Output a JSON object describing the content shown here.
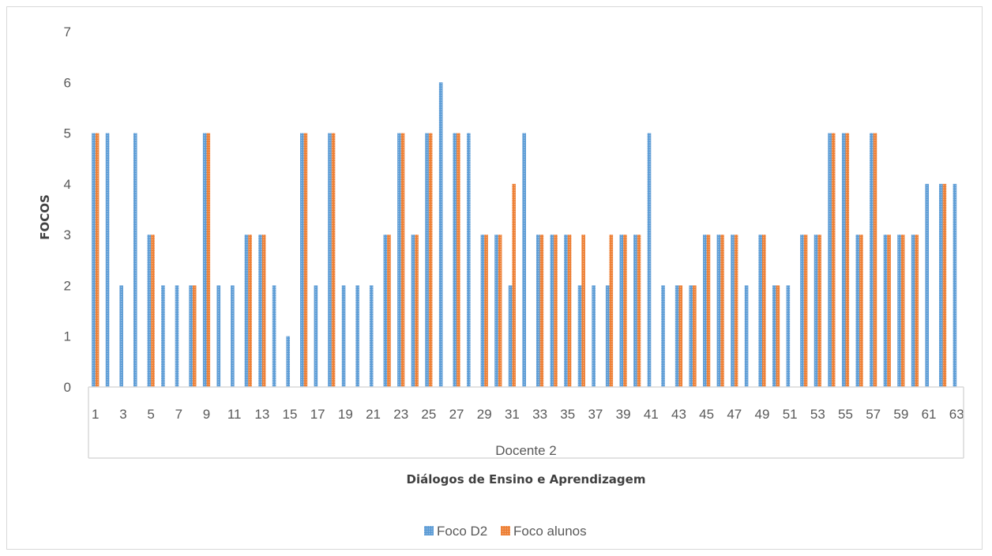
{
  "chart_data": {
    "type": "bar",
    "ylabel": "FOCOS",
    "xlabel": "Diálogos de Ensino e Aprendizagem",
    "group_label": "Docente 2",
    "ylim": [
      0,
      7
    ],
    "yticks": [
      0,
      1,
      2,
      3,
      4,
      5,
      6,
      7
    ],
    "categories": [
      1,
      2,
      3,
      4,
      5,
      6,
      7,
      8,
      9,
      10,
      11,
      12,
      13,
      14,
      15,
      16,
      17,
      18,
      19,
      20,
      21,
      22,
      23,
      24,
      25,
      26,
      27,
      28,
      29,
      30,
      31,
      32,
      33,
      34,
      35,
      36,
      37,
      38,
      39,
      40,
      41,
      42,
      43,
      44,
      45,
      46,
      47,
      48,
      49,
      50,
      51,
      52,
      53,
      54,
      55,
      56,
      57,
      58,
      59,
      60,
      61,
      62,
      63
    ],
    "category_labels_shown": [
      1,
      3,
      5,
      7,
      9,
      11,
      13,
      15,
      17,
      19,
      21,
      23,
      25,
      27,
      29,
      31,
      33,
      35,
      37,
      39,
      41,
      43,
      45,
      47,
      49,
      51,
      53,
      55,
      57,
      59,
      61,
      63
    ],
    "series": [
      {
        "name": "Foco D2",
        "color": "#5b9bd5",
        "values": [
          5,
          5,
          2,
          5,
          3,
          2,
          2,
          2,
          5,
          2,
          2,
          3,
          3,
          2,
          1,
          5,
          2,
          5,
          2,
          2,
          2,
          3,
          5,
          3,
          5,
          6,
          5,
          5,
          3,
          3,
          2,
          5,
          3,
          3,
          3,
          2,
          2,
          2,
          3,
          3,
          5,
          2,
          2,
          2,
          3,
          3,
          3,
          2,
          3,
          2,
          2,
          3,
          3,
          5,
          5,
          3,
          5,
          3,
          3,
          3,
          4,
          4,
          4
        ]
      },
      {
        "name": "Foco alunos",
        "color": "#ed7d31",
        "values": [
          5,
          0,
          0,
          0,
          3,
          0,
          0,
          2,
          5,
          0,
          0,
          3,
          3,
          0,
          0,
          5,
          0,
          5,
          0,
          0,
          0,
          3,
          5,
          3,
          5,
          0,
          5,
          0,
          3,
          3,
          4,
          0,
          3,
          3,
          3,
          3,
          0,
          3,
          3,
          3,
          0,
          0,
          2,
          2,
          3,
          3,
          3,
          0,
          3,
          2,
          0,
          3,
          3,
          5,
          5,
          3,
          5,
          3,
          3,
          3,
          0,
          4,
          0
        ]
      }
    ],
    "grid": false,
    "legend_position": "bottom"
  }
}
